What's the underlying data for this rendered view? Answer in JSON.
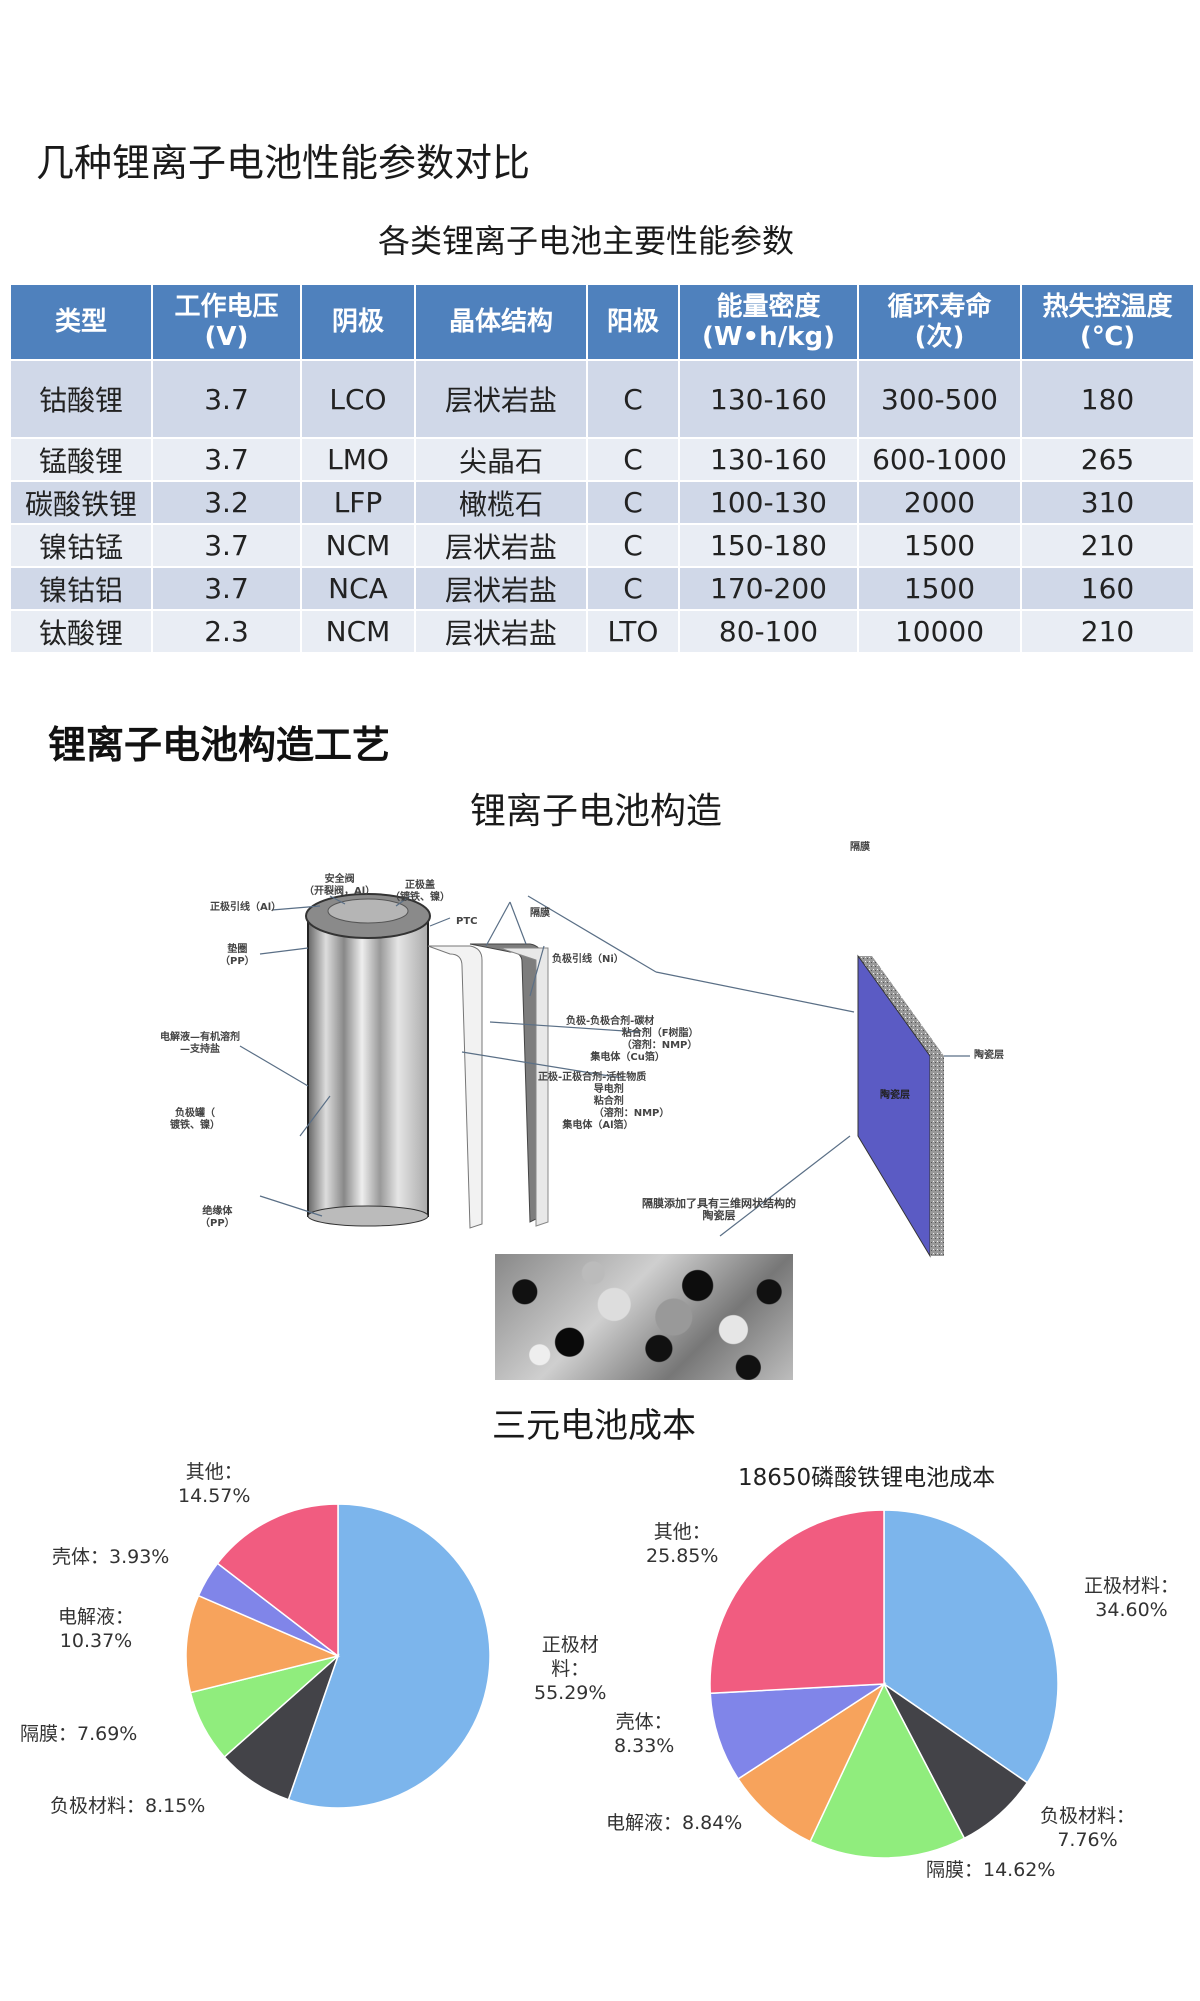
{
  "page": {
    "title": "几种锂离子电池性能参数对比",
    "table_title": "各类锂离子电池主要性能参数",
    "section_heading": "锂离子电池构造工艺",
    "diagram_title": "锂离子电池构造",
    "cost_title": "三元电池成本"
  },
  "table": {
    "headers": [
      [
        "类型"
      ],
      [
        "工作电压",
        "(V)"
      ],
      [
        "阴极"
      ],
      [
        "晶体结构"
      ],
      [
        "阳极"
      ],
      [
        "能量密度",
        "(W•h/kg)"
      ],
      [
        "循环寿命",
        "(次)"
      ],
      [
        "热失控温度",
        "(℃)"
      ]
    ],
    "rows": [
      [
        "钴酸锂",
        "3.7",
        "LCO",
        "层状岩盐",
        "C",
        "130-160",
        "300-500",
        "180"
      ],
      [
        "锰酸锂",
        "3.7",
        "LMO",
        "尖晶石",
        "C",
        "130-160",
        "600-1000",
        "265"
      ],
      [
        "碳酸铁锂",
        "3.2",
        "LFP",
        "橄榄石",
        "C",
        "100-130",
        "2000",
        "310"
      ],
      [
        "镍钴锰",
        "3.7",
        "NCM",
        "层状岩盐",
        "C",
        "150-180",
        "1500",
        "210"
      ],
      [
        "镍钴铝",
        "3.7",
        "NCA",
        "层状岩盐",
        "C",
        "170-200",
        "1500",
        "160"
      ],
      [
        "钛酸锂",
        "2.3",
        "NCM",
        "层状岩盐",
        "LTO",
        "80-100",
        "10000",
        "210"
      ]
    ],
    "colors": {
      "header_bg": "#4f81bd",
      "row_odd": "#d0d8e8",
      "row_even": "#e9edf4"
    }
  },
  "diagram": {
    "labels": {
      "positive_lead": "正极引线（Al）",
      "safety_valve": "安全阀",
      "safety_valve_sub": "（开裂阀，Al）",
      "positive_cap": "正极盖",
      "positive_cap_sub": "（镀铁、镍）",
      "ptc": "PTC",
      "gasket": "垫圈",
      "gasket_sub": "（PP）",
      "separator_top": "隔膜",
      "negative_lead": "负极引线（Ni）",
      "electrolyte": "电解液—有机溶剂",
      "electrolyte_sub": "—支持盐",
      "negative_can": "负极罐（",
      "negative_can_sub": "镀铁、镍）",
      "anode": "负极",
      "anode_mix": "负极合剂",
      "anode_mix_1": "碳材",
      "anode_mix_2": "粘合剂（F树脂）",
      "anode_mix_3": "（溶剂：NMP）",
      "anode_collector": "集电体（Cu箔）",
      "cathode": "正极",
      "cathode_mix": "正极合剂",
      "cathode_mix_1": "活性物质",
      "cathode_mix_2": "导电剂",
      "cathode_mix_3": "粘合剂",
      "cathode_mix_4": "（溶剂：NMP）",
      "cathode_collector": "集电体（Al箔）",
      "insulator": "绝缘体",
      "insulator_sub": "（PP）",
      "separator_panel_top": "隔膜",
      "ceramic_layer_inner": "陶瓷层",
      "ceramic_layer_right": "陶瓷层",
      "separator_note_1": "隔膜添加了具有三维网状结构的",
      "separator_note_2": "陶瓷层"
    }
  },
  "chart_data": [
    {
      "type": "pie",
      "title": "三元电池成本",
      "categories": [
        "正极材料",
        "负极材料",
        "隔膜",
        "电解液",
        "壳体",
        "其他"
      ],
      "values": [
        55.29,
        8.15,
        7.69,
        10.37,
        3.93,
        14.57
      ],
      "colors": [
        "#7cb5ec",
        "#434348",
        "#90ed7d",
        "#f7a35c",
        "#8085e9",
        "#f15c80"
      ],
      "labels": {
        "positive": [
          "正极材",
          "料：",
          "55.29%"
        ],
        "negative": "负极材料：8.15%",
        "separator": "隔膜：7.69%",
        "electrolyte": [
          "电解液：",
          "10.37%"
        ],
        "shell": "壳体：3.93%",
        "other": [
          "其他：",
          "14.57%"
        ]
      },
      "start_angle": 0,
      "direction": "clockwise"
    },
    {
      "type": "pie",
      "title": "18650磷酸铁锂电池成本",
      "categories": [
        "正极材料",
        "负极材料",
        "隔膜",
        "电解液",
        "壳体",
        "其他"
      ],
      "values": [
        34.6,
        7.76,
        14.62,
        8.84,
        8.33,
        25.85
      ],
      "colors": [
        "#7cb5ec",
        "#434348",
        "#90ed7d",
        "#f7a35c",
        "#8085e9",
        "#f15c80"
      ],
      "labels": {
        "positive": [
          "正极材料：",
          "34.60%"
        ],
        "negative": [
          "负极材料：",
          "7.76%"
        ],
        "separator": "隔膜：14.62%",
        "electrolyte": "电解液：8.84%",
        "shell": [
          "壳体：",
          "8.33%"
        ],
        "other": [
          "其他：",
          "25.85%"
        ]
      },
      "start_angle": 0,
      "direction": "clockwise"
    }
  ]
}
